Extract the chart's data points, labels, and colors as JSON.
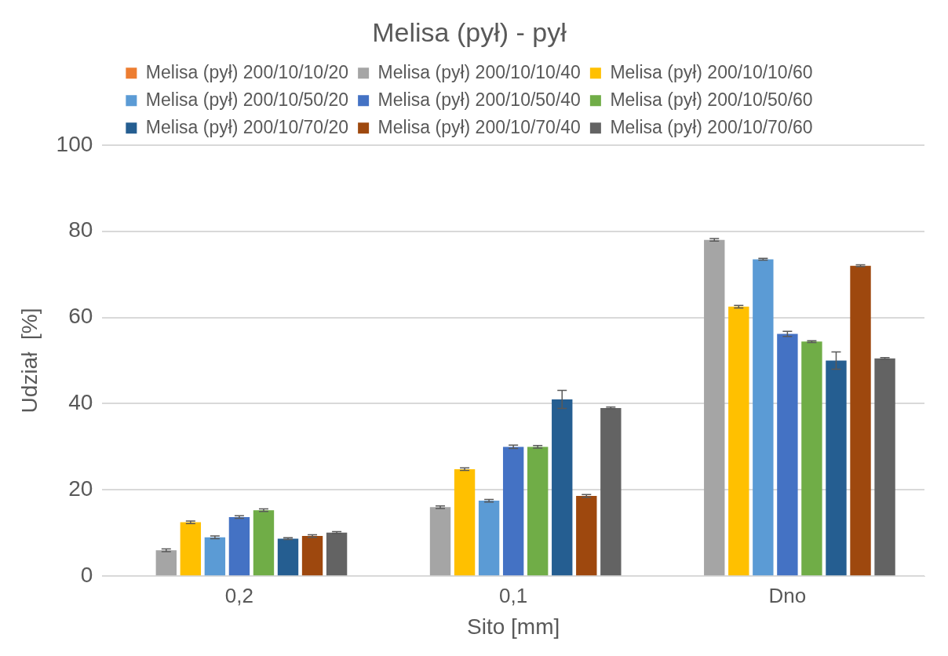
{
  "chart_data": {
    "type": "bar",
    "title": "Melisa (pył) - pył",
    "xlabel": "Sito [mm]",
    "ylabel": "Udział  [%]",
    "categories": [
      "0,2",
      "0,1",
      "Dno"
    ],
    "ylim": [
      0,
      100
    ],
    "yticks": [
      0,
      20,
      40,
      60,
      80,
      100
    ],
    "grid": "y",
    "legend": "top",
    "series": [
      {
        "name": "Melisa (pył) 200/10/10/20",
        "color": "#ed7d31",
        "values": [
          0,
          0,
          0
        ]
      },
      {
        "name": "Melisa (pył) 200/10/10/40",
        "color": "#a5a5a5",
        "values": [
          6,
          16,
          78
        ],
        "errors": [
          0.3,
          0.3,
          0.3
        ]
      },
      {
        "name": "Melisa (pył) 200/10/10/60",
        "color": "#ffc000",
        "values": [
          12.5,
          24.8,
          62.5
        ],
        "errors": [
          0.3,
          0.3,
          0.3
        ]
      },
      {
        "name": "Melisa (pył) 200/10/50/20",
        "color": "#5b9bd5",
        "values": [
          9,
          17.5,
          73.5
        ],
        "errors": [
          0.3,
          0.3,
          0.2
        ]
      },
      {
        "name": "Melisa (pył) 200/10/50/40",
        "color": "#4472c4",
        "values": [
          13.7,
          30,
          56.2
        ],
        "errors": [
          0.3,
          0.4,
          0.6
        ]
      },
      {
        "name": "Melisa (pył) 200/10/50/60",
        "color": "#70ad47",
        "values": [
          15.3,
          30,
          54.4
        ],
        "errors": [
          0.3,
          0.3,
          0.2
        ]
      },
      {
        "name": "Melisa (pył) 200/10/70/20",
        "color": "#255e91",
        "values": [
          8.7,
          41,
          50
        ],
        "errors": [
          0.2,
          2.1,
          2
        ]
      },
      {
        "name": "Melisa (pył) 200/10/70/40",
        "color": "#9e480e",
        "values": [
          9.3,
          18.6,
          72
        ],
        "errors": [
          0.3,
          0.3,
          0.2
        ]
      },
      {
        "name": "Melisa (pył) 200/10/70/60",
        "color": "#636363",
        "values": [
          10.1,
          39,
          50.5
        ],
        "errors": [
          0.2,
          0.2,
          0.2
        ]
      }
    ]
  }
}
